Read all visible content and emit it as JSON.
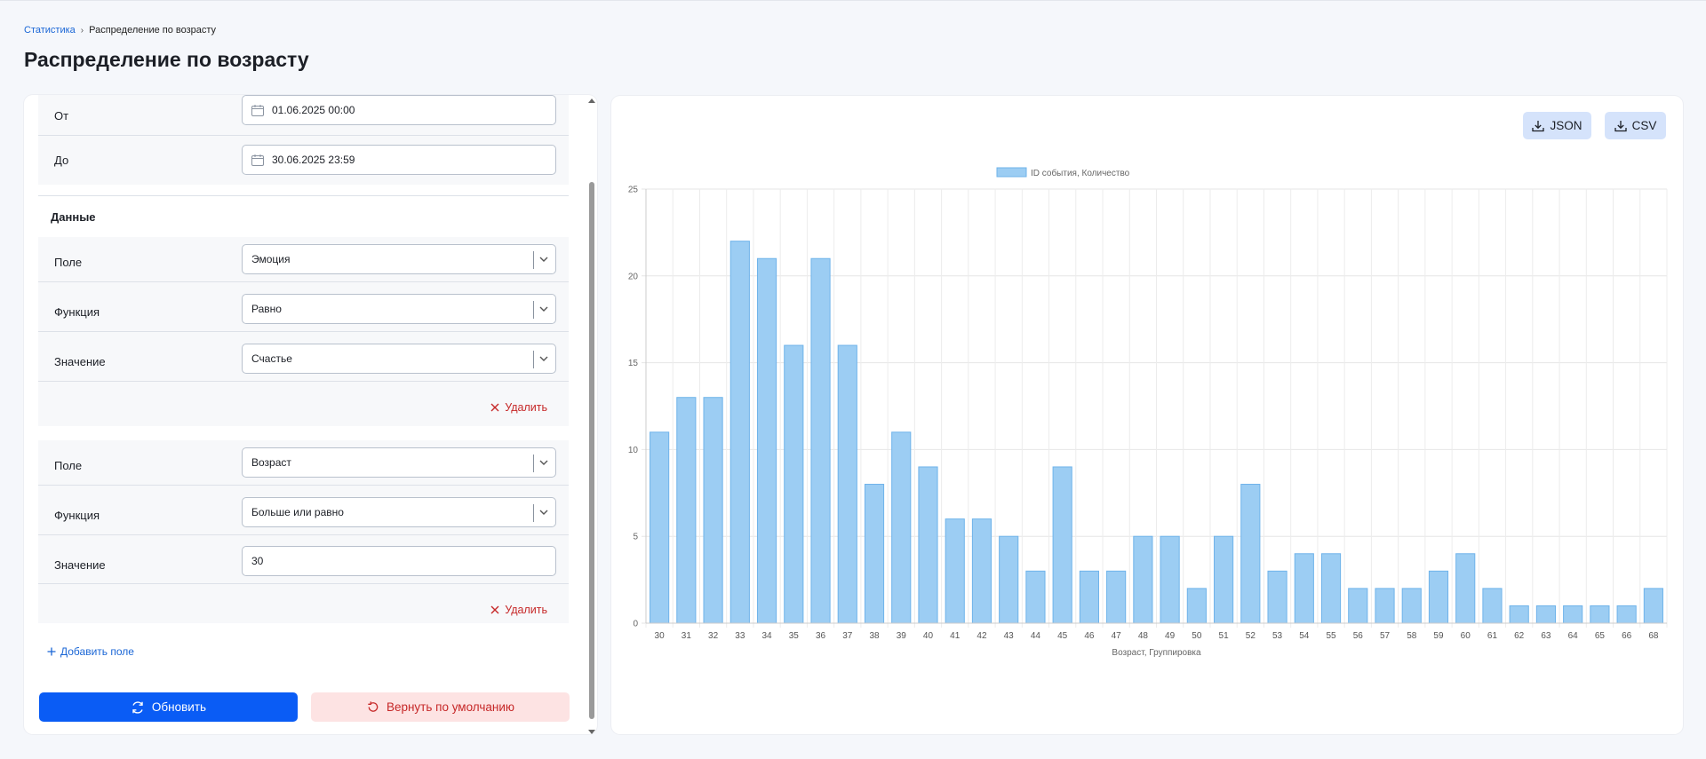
{
  "breadcrumb": {
    "parent": "Статистика",
    "current": "Распределение по возрасту"
  },
  "page_title": "Распределение по возрасту",
  "filters": {
    "from_label": "От",
    "from_value": "01.06.2025 00:00",
    "to_label": "До",
    "to_value": "30.06.2025 23:59"
  },
  "data_section_title": "Данные",
  "conditions": [
    {
      "field_label": "Поле",
      "field_value": "Эмоция",
      "function_label": "Функция",
      "function_value": "Равно",
      "value_label": "Значение",
      "value_value": "Счастье",
      "delete_label": "Удалить"
    },
    {
      "field_label": "Поле",
      "field_value": "Возраст",
      "function_label": "Функция",
      "function_value": "Больше или равно",
      "value_label": "Значение",
      "value_value": "30",
      "delete_label": "Удалить"
    }
  ],
  "add_field_label": "Добавить поле",
  "buttons": {
    "refresh": "Обновить",
    "reset": "Вернуть по умолчанию",
    "json": "JSON",
    "csv": "CSV"
  },
  "colors": {
    "primary": "#0a5cf5",
    "danger": "#c62828",
    "bar_fill": "#9ccdf3",
    "bar_stroke": "#6fb3ea"
  },
  "chart_data": {
    "type": "bar",
    "legend": "ID события, Количество",
    "xlabel": "Возраст, Группировка",
    "ylabel": "",
    "ylim": [
      0,
      25
    ],
    "yticks": [
      0,
      5,
      10,
      15,
      20,
      25
    ],
    "grid": true,
    "legend_position": "top-center",
    "categories": [
      "30",
      "31",
      "32",
      "33",
      "34",
      "35",
      "36",
      "37",
      "38",
      "39",
      "40",
      "41",
      "42",
      "43",
      "44",
      "45",
      "46",
      "47",
      "48",
      "49",
      "50",
      "51",
      "52",
      "53",
      "54",
      "55",
      "56",
      "57",
      "58",
      "59",
      "60",
      "61",
      "62",
      "63",
      "64",
      "65",
      "66",
      "68"
    ],
    "values": [
      11,
      13,
      13,
      22,
      21,
      16,
      21,
      16,
      8,
      11,
      9,
      6,
      6,
      5,
      3,
      9,
      3,
      3,
      5,
      5,
      2,
      5,
      8,
      3,
      4,
      4,
      2,
      2,
      2,
      3,
      4,
      2,
      1,
      1,
      1,
      1,
      1,
      2
    ]
  }
}
